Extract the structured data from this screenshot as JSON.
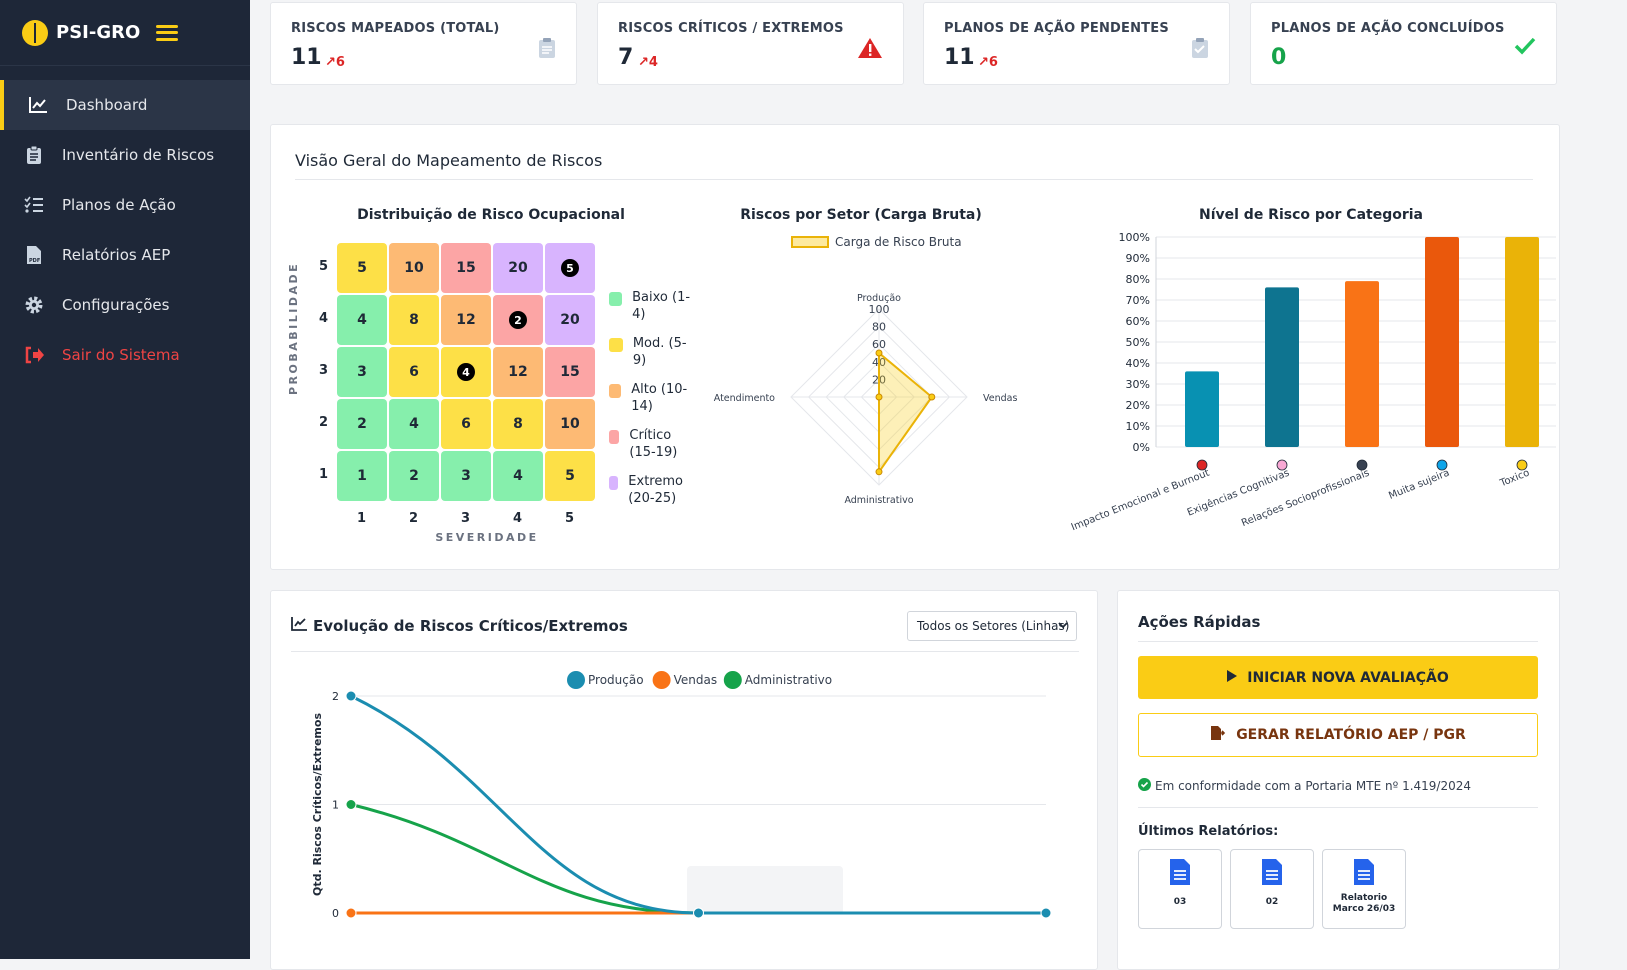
{
  "app": {
    "title": "PSI-GRO"
  },
  "sidebar": {
    "items": [
      {
        "label": "Dashboard",
        "icon": "chart-line-icon"
      },
      {
        "label": "Inventário de Riscos",
        "icon": "clipboard-icon"
      },
      {
        "label": "Planos de Ação",
        "icon": "list-check-icon"
      },
      {
        "label": "Relatórios AEP",
        "icon": "pdf-file-icon"
      },
      {
        "label": "Configurações",
        "icon": "gear-icon"
      },
      {
        "label": "Sair do Sistema",
        "icon": "logout-icon"
      }
    ]
  },
  "kpis": [
    {
      "label": "RISCOS MAPEADOS (TOTAL)",
      "value": "11",
      "trend": "6",
      "icon": "clipboard-icon"
    },
    {
      "label": "RISCOS CRÍTICOS / EXTREMOS",
      "value": "7",
      "trend": "4",
      "icon": "warning-icon"
    },
    {
      "label": "PLANOS DE AÇÃO PENDENTES",
      "value": "11",
      "trend": "6",
      "icon": "clipboard-check-icon"
    },
    {
      "label": "PLANOS DE AÇÃO CONCLUÍDOS",
      "value": "0",
      "trend": "",
      "icon": "check-icon"
    }
  ],
  "overview": {
    "title": "Visão Geral do Mapeamento de Riscos"
  },
  "matrix": {
    "title": "Distribuição de Risco Ocupacional",
    "ylabel": "PROBABILIDADE",
    "xlabel": "SEVERIDADE",
    "probabilities": [
      "5",
      "4",
      "3",
      "2",
      "1"
    ],
    "severities": [
      "1",
      "2",
      "3",
      "4",
      "5"
    ],
    "rows": [
      [
        "5",
        "10",
        "15",
        "20",
        "5"
      ],
      [
        "4",
        "8",
        "12",
        "2",
        "20"
      ],
      [
        "3",
        "6",
        "4",
        "12",
        "15"
      ],
      [
        "2",
        "4",
        "6",
        "8",
        "10"
      ],
      [
        "1",
        "2",
        "3",
        "4",
        "5"
      ]
    ],
    "counts": [
      [
        0,
        0,
        0,
        0,
        5
      ],
      [
        0,
        0,
        0,
        2,
        0
      ],
      [
        0,
        0,
        4,
        0,
        0
      ],
      [
        0,
        0,
        0,
        0,
        0
      ],
      [
        0,
        0,
        0,
        0,
        0
      ]
    ],
    "levels": [
      [
        "mod",
        "alto",
        "crit",
        "ext",
        "ext"
      ],
      [
        "baixo",
        "mod",
        "alto",
        "crit",
        "ext"
      ],
      [
        "baixo",
        "mod",
        "mod",
        "alto",
        "crit"
      ],
      [
        "baixo",
        "baixo",
        "mod",
        "mod",
        "alto"
      ],
      [
        "baixo",
        "baixo",
        "baixo",
        "baixo",
        "mod"
      ]
    ],
    "legend": [
      {
        "label": "Baixo (1-4)",
        "color": "#86efac"
      },
      {
        "label": "Mod. (5-9)",
        "color": "#fde047"
      },
      {
        "label": "Alto (10-14)",
        "color": "#fdba74"
      },
      {
        "label": "Crítico (15-19)",
        "color": "#fca5a5"
      },
      {
        "label": "Extremo (20-25)",
        "color": "#d8b4fe"
      }
    ]
  },
  "chart_data": [
    {
      "type": "radar",
      "title": "Riscos por Setor (Carga Bruta)",
      "axes": [
        "Produção",
        "Vendas",
        "Administrativo",
        "Atendimento"
      ],
      "ticks": [
        "100",
        "80",
        "60",
        "40",
        "20"
      ],
      "rlim": [
        0,
        100
      ],
      "series": [
        {
          "name": "Carga de Risco Bruta",
          "values": [
            50,
            60,
            85,
            0
          ]
        }
      ]
    },
    {
      "type": "bar",
      "title": "Nível de Risco por Categoria",
      "categories": [
        "Impacto Emocional e Burnout",
        "Exigências Cognitivas",
        "Relações Socioprofissionais",
        "Muita sujeira",
        "Toxico"
      ],
      "values": [
        36,
        76,
        79,
        100,
        100
      ],
      "colors": [
        "#0891b2",
        "#0e7490",
        "#f97316",
        "#ea580c",
        "#eab308"
      ],
      "yticks": [
        "100%",
        "90%",
        "80%",
        "70%",
        "60%",
        "50%",
        "40%",
        "30%",
        "20%",
        "10%",
        "0%"
      ],
      "ylim": [
        0,
        100
      ]
    },
    {
      "type": "line",
      "title": "Evolução de Riscos Críticos/Extremos",
      "ylabel": "Qtd. Riscos Críticos/Extremos",
      "yticks": [
        "2",
        "1",
        "0"
      ],
      "ylim": [
        0,
        2
      ],
      "series": [
        {
          "name": "Produção",
          "color": "#1b8db0",
          "values": [
            2,
            0,
            0
          ]
        },
        {
          "name": "Vendas",
          "color": "#f97316",
          "values": [
            0,
            0,
            0
          ]
        },
        {
          "name": "Administrativo",
          "color": "#16a34a",
          "values": [
            1,
            0,
            0
          ]
        }
      ]
    }
  ],
  "evolution": {
    "select_value": "Todos os Setores (Linhas)"
  },
  "quick": {
    "title": "Ações Rápidas",
    "start_label": "INICIAR NOVA AVALIAÇÃO",
    "report_label": "GERAR RELATÓRIO AEP / PGR",
    "compliance": "Em conformidade com a Portaria MTE nº 1.419/2024",
    "reports_title": "Últimos Relatórios:",
    "reports": [
      {
        "label": "03"
      },
      {
        "label": "02"
      },
      {
        "label": "Relatorio Marco 26/03"
      }
    ]
  }
}
